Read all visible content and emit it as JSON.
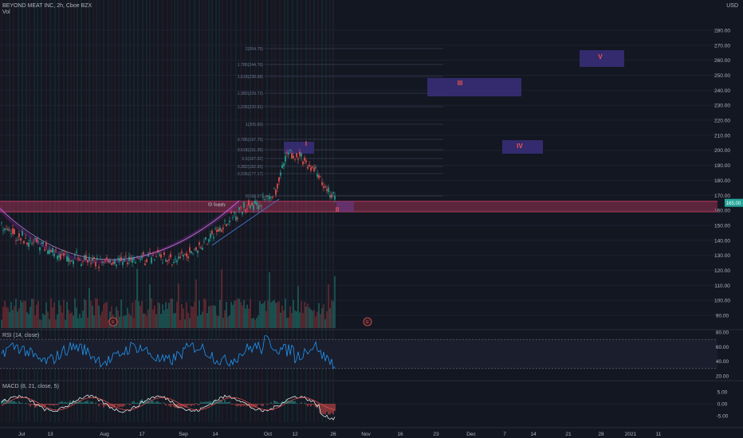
{
  "header": {
    "symbol_line": "BEYOND MEAT INC, 2h, Cboe BZX",
    "volume_label": "Vol",
    "currency": "USD"
  },
  "price_axis": {
    "labels": [
      "280.00",
      "270.00",
      "260.00",
      "250.00",
      "240.00",
      "230.00",
      "220.00",
      "210.00",
      "200.00",
      "190.00",
      "180.00",
      "170.00",
      "160.00",
      "150.00",
      "140.00",
      "130.00",
      "120.00",
      "110.00",
      "100.00",
      "90.00"
    ],
    "current_price_badge": "165.00"
  },
  "time_axis": {
    "labels": [
      "Jul",
      "13",
      "Aug",
      "17",
      "Sep",
      "14",
      "Oct",
      "12",
      "26",
      "Nov",
      "16",
      "23",
      "Dec",
      "7",
      "14",
      "21",
      "28",
      "2021",
      "11"
    ]
  },
  "rsi": {
    "label": "RSI (14, close)",
    "axis_labels": [
      "80.00",
      "60.00",
      "40.00",
      "20.00"
    ]
  },
  "macd": {
    "label": "MACD (8, 21, close, 5)",
    "axis_labels": [
      "5.00",
      "0.00",
      "-5.00"
    ]
  },
  "annotations": {
    "supply_label": "ID Supply",
    "waves": [
      "I",
      "II",
      "III",
      "IV",
      "V"
    ],
    "earnings_markers": [
      "E",
      "E"
    ],
    "fib_labels": [
      "2(264.75)",
      "1.786(244.76)",
      "1.618(238.68)",
      "1.382(229.72)",
      "1.236(220.01)",
      "1(205.60)",
      "0.786(197.75)",
      "0.618(191.39)",
      "0.5(187.02)",
      "0.382(182.65)",
      "0.236(177.17)",
      "0(168.57)"
    ]
  },
  "colors": {
    "background": "#131722",
    "up": "#26a69a",
    "down": "#ef5350",
    "supply_zone": "#b4385e",
    "wave_box": "#3a2f7a",
    "rsi_line": "#2196f3",
    "macd_line": "#ffffff",
    "signal_line": "#ef5350",
    "cup": "#9c27b0"
  }
}
